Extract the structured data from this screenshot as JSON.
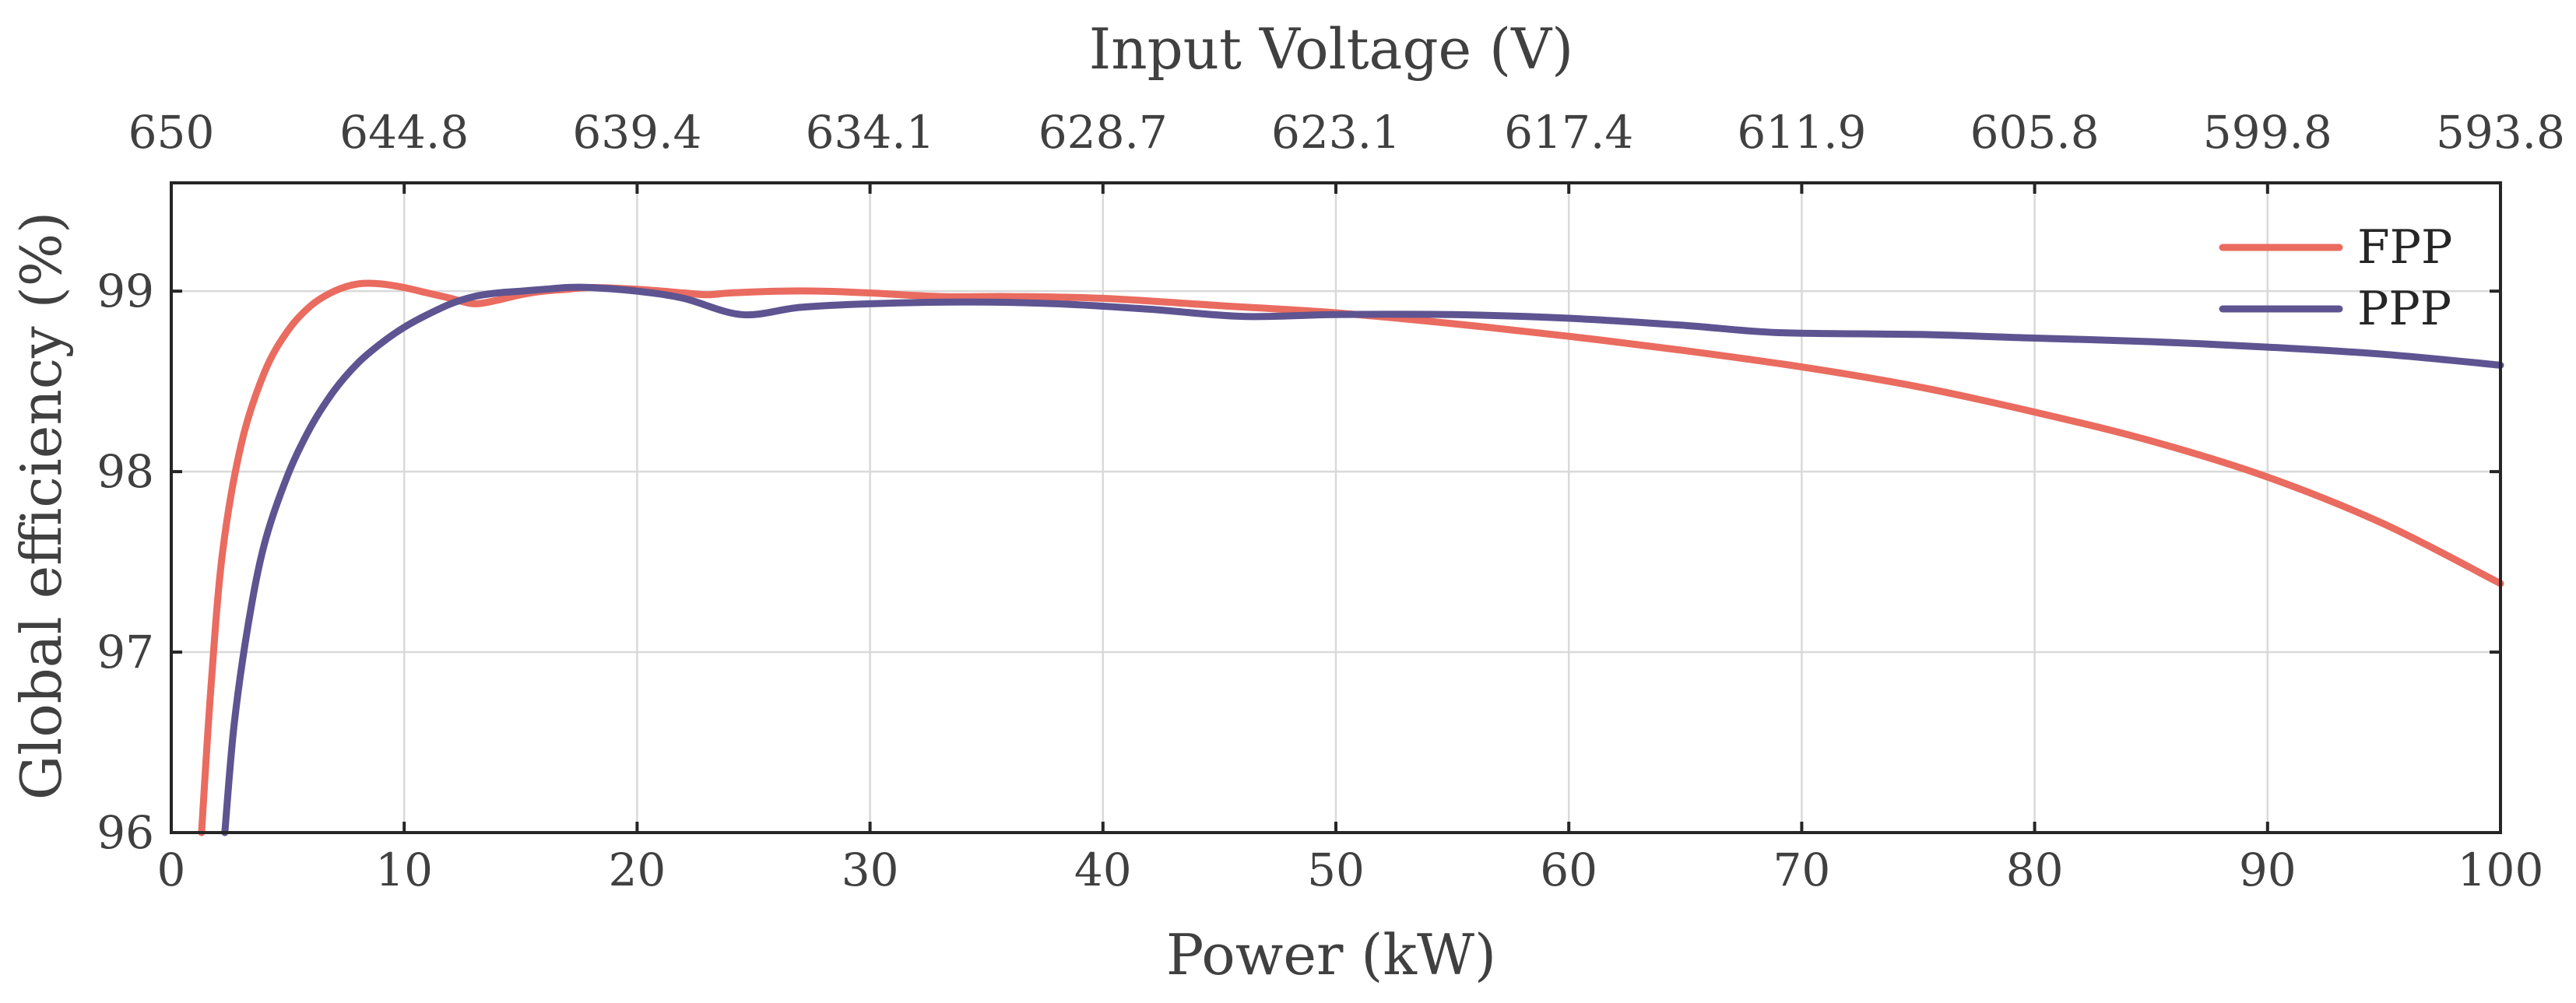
{
  "chart_data": {
    "type": "line",
    "title": "",
    "xlabel": "Power (kW)",
    "ylabel": "Global efficiency (%)",
    "x2label": "Input Voltage (V)",
    "xlim": [
      0,
      100
    ],
    "ylim": [
      96,
      99.6
    ],
    "xticks": [
      0,
      10,
      20,
      30,
      40,
      50,
      60,
      70,
      80,
      90,
      100
    ],
    "xtick_labels": [
      "0",
      "10",
      "20",
      "30",
      "40",
      "50",
      "60",
      "70",
      "80",
      "90",
      "100"
    ],
    "yticks": [
      96,
      97,
      98,
      99
    ],
    "ytick_labels": [
      "96",
      "97",
      "98",
      "99"
    ],
    "x2tick_labels": [
      "650",
      "644.8",
      "639.4",
      "634.1",
      "628.7",
      "623.1",
      "617.4",
      "611.9",
      "605.8",
      "599.8",
      "593.8"
    ],
    "grid": true,
    "legend_position": "top-right",
    "series": [
      {
        "name": "FPP",
        "color": "#EA6B5F",
        "x": [
          1.3,
          1.7,
          2.2,
          3,
          4,
          5,
          6,
          7,
          8,
          9,
          10,
          11,
          12,
          13,
          14,
          15,
          16,
          17,
          18,
          20,
          22,
          23,
          24,
          26,
          28,
          30,
          33,
          36,
          40,
          45,
          50,
          55,
          60,
          65,
          70,
          75,
          80,
          85,
          90,
          95,
          100
        ],
        "y": [
          96.0,
          96.8,
          97.55,
          98.15,
          98.55,
          98.78,
          98.92,
          99.0,
          99.04,
          99.04,
          99.02,
          98.99,
          98.96,
          98.93,
          98.95,
          98.98,
          99.0,
          99.01,
          99.02,
          99.01,
          98.99,
          98.98,
          98.99,
          99.0,
          99.0,
          98.99,
          98.97,
          98.97,
          98.96,
          98.92,
          98.88,
          98.82,
          98.75,
          98.67,
          98.58,
          98.47,
          98.33,
          98.17,
          97.97,
          97.71,
          97.38
        ]
      },
      {
        "name": "PPP",
        "color": "#5E5491",
        "x": [
          2.3,
          2.7,
          3.3,
          4,
          5,
          6,
          7,
          8,
          9,
          10,
          11,
          12,
          13,
          14,
          15,
          16,
          17,
          18,
          20,
          22,
          24.5,
          27,
          30,
          34,
          38,
          42,
          46,
          50,
          55,
          60,
          65,
          69,
          75,
          80,
          85,
          90,
          95,
          100
        ],
        "y": [
          96.0,
          96.6,
          97.15,
          97.6,
          97.98,
          98.25,
          98.45,
          98.6,
          98.71,
          98.8,
          98.87,
          98.93,
          98.97,
          98.99,
          99.0,
          99.01,
          99.02,
          99.02,
          99.0,
          98.96,
          98.87,
          98.91,
          98.93,
          98.94,
          98.93,
          98.9,
          98.86,
          98.87,
          98.87,
          98.85,
          98.81,
          98.77,
          98.76,
          98.74,
          98.72,
          98.69,
          98.65,
          98.59
        ]
      }
    ]
  }
}
